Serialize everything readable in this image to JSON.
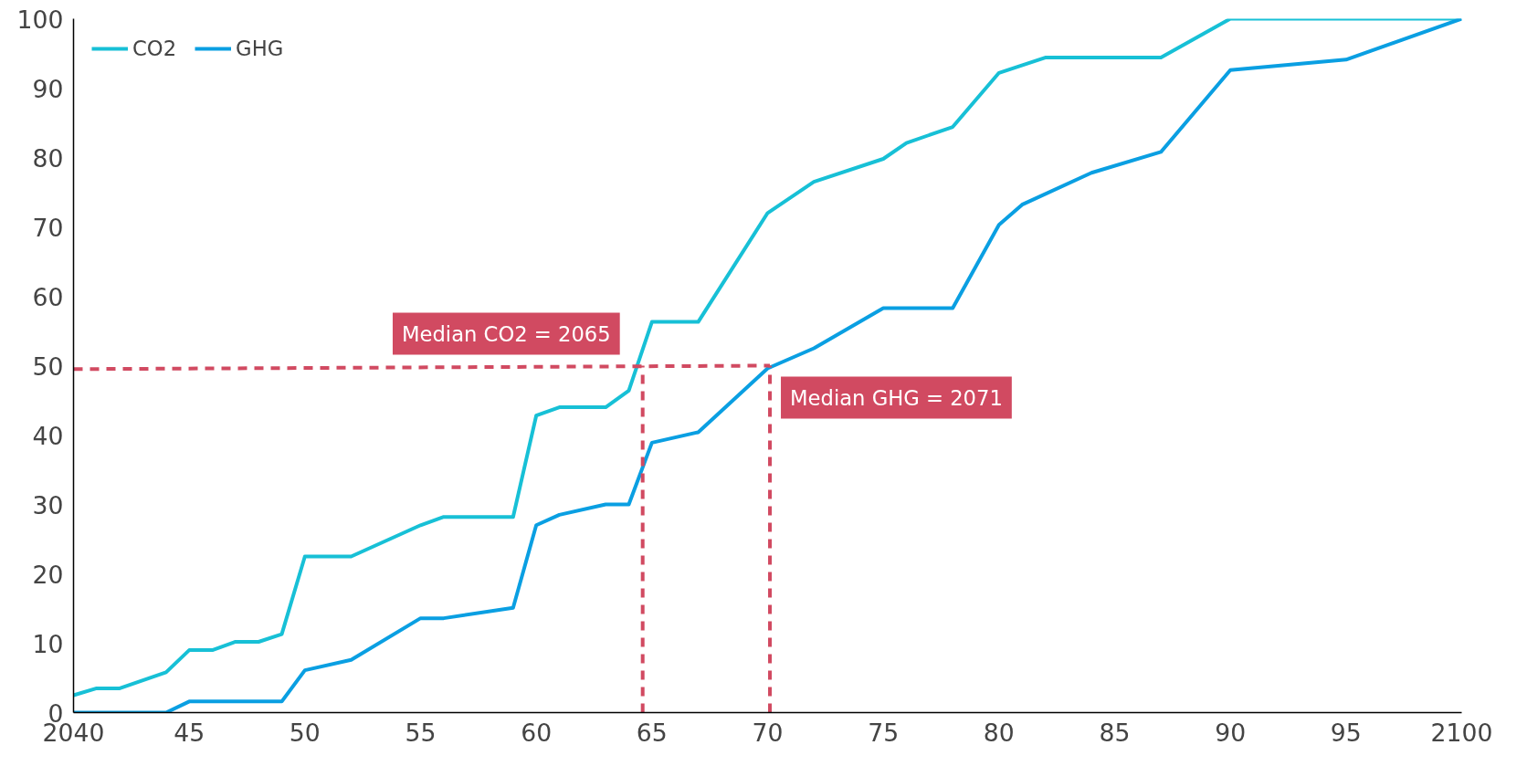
{
  "chart_data": {
    "type": "line",
    "series": [
      {
        "name": "CO2",
        "color": "#17c0d6",
        "x": [
          2040,
          2041,
          2042,
          2044,
          2045,
          2046,
          2047,
          2048,
          2049,
          2050,
          2052,
          2055,
          2056,
          2059,
          2060,
          2061,
          2063,
          2064,
          2065,
          2067,
          2070,
          2072,
          2075,
          2076,
          2078,
          2080,
          2082,
          2087,
          2090,
          2100
        ],
        "values": [
          2.5,
          3.5,
          3.5,
          5.8,
          9,
          9,
          10.2,
          10.2,
          11.3,
          22.5,
          22.5,
          27,
          28.2,
          28.2,
          42.8,
          44,
          44,
          46.4,
          56.3,
          56.3,
          72,
          76.5,
          79.8,
          82.1,
          84.4,
          92.2,
          94.4,
          94.4,
          100,
          100
        ]
      },
      {
        "name": "GHG",
        "color": "#0a9fe2",
        "x": [
          2040,
          2044,
          2045,
          2049,
          2050,
          2052,
          2055,
          2056,
          2059,
          2060,
          2061,
          2063,
          2064,
          2065,
          2067,
          2070,
          2072,
          2075,
          2078,
          2080,
          2081,
          2084,
          2087,
          2090,
          2095,
          2100
        ],
        "values": [
          0,
          0,
          1.6,
          1.6,
          6.1,
          7.6,
          13.6,
          13.6,
          15.1,
          27,
          28.5,
          30,
          30,
          38.9,
          40.4,
          49.6,
          52.5,
          58.3,
          58.3,
          70.3,
          73.2,
          77.8,
          80.8,
          92.6,
          94.1,
          100
        ]
      },
      {
        "color": "#d14a61",
        "line_style": "dashed",
        "x": [
          2040,
          2070.1
        ],
        "values": [
          49.5,
          50
        ]
      },
      {
        "color": "#d14a61",
        "line_style": "dashed",
        "x": [
          2064.6,
          2064.6
        ],
        "values": [
          0,
          50
        ]
      },
      {
        "color": "#d14a61",
        "line_style": "dashed",
        "x": [
          2070.1,
          2070.1
        ],
        "values": [
          0,
          50
        ]
      }
    ],
    "xlim": [
      2040,
      2100
    ],
    "xticks": [
      2040,
      {
        "value": 2045,
        "label": "45"
      },
      {
        "value": 2050,
        "label": "50"
      },
      {
        "value": 2055,
        "label": "55"
      },
      {
        "value": 2060,
        "label": "60"
      },
      {
        "value": 2065,
        "label": "65"
      },
      {
        "value": 2070,
        "label": "70"
      },
      {
        "value": 2075,
        "label": "75"
      },
      {
        "value": 2080,
        "label": "80"
      },
      {
        "value": 2085,
        "label": "85"
      },
      {
        "value": 2090,
        "label": "90"
      },
      {
        "value": 2095,
        "label": "95"
      },
      2100
    ],
    "ylim": [
      0,
      100
    ],
    "yticks": [
      0,
      10,
      20,
      30,
      40,
      50,
      60,
      70,
      80,
      90,
      100
    ],
    "annotations": [
      {
        "text": "Median CO2 = 2065",
        "x": 2064.6,
        "y": 50
      },
      {
        "text": "Median GHG = 2071",
        "x": 2070.1,
        "y": 50
      }
    ],
    "grid": false,
    "legend": "top left",
    "line_style": "solid",
    "marker": "none"
  }
}
